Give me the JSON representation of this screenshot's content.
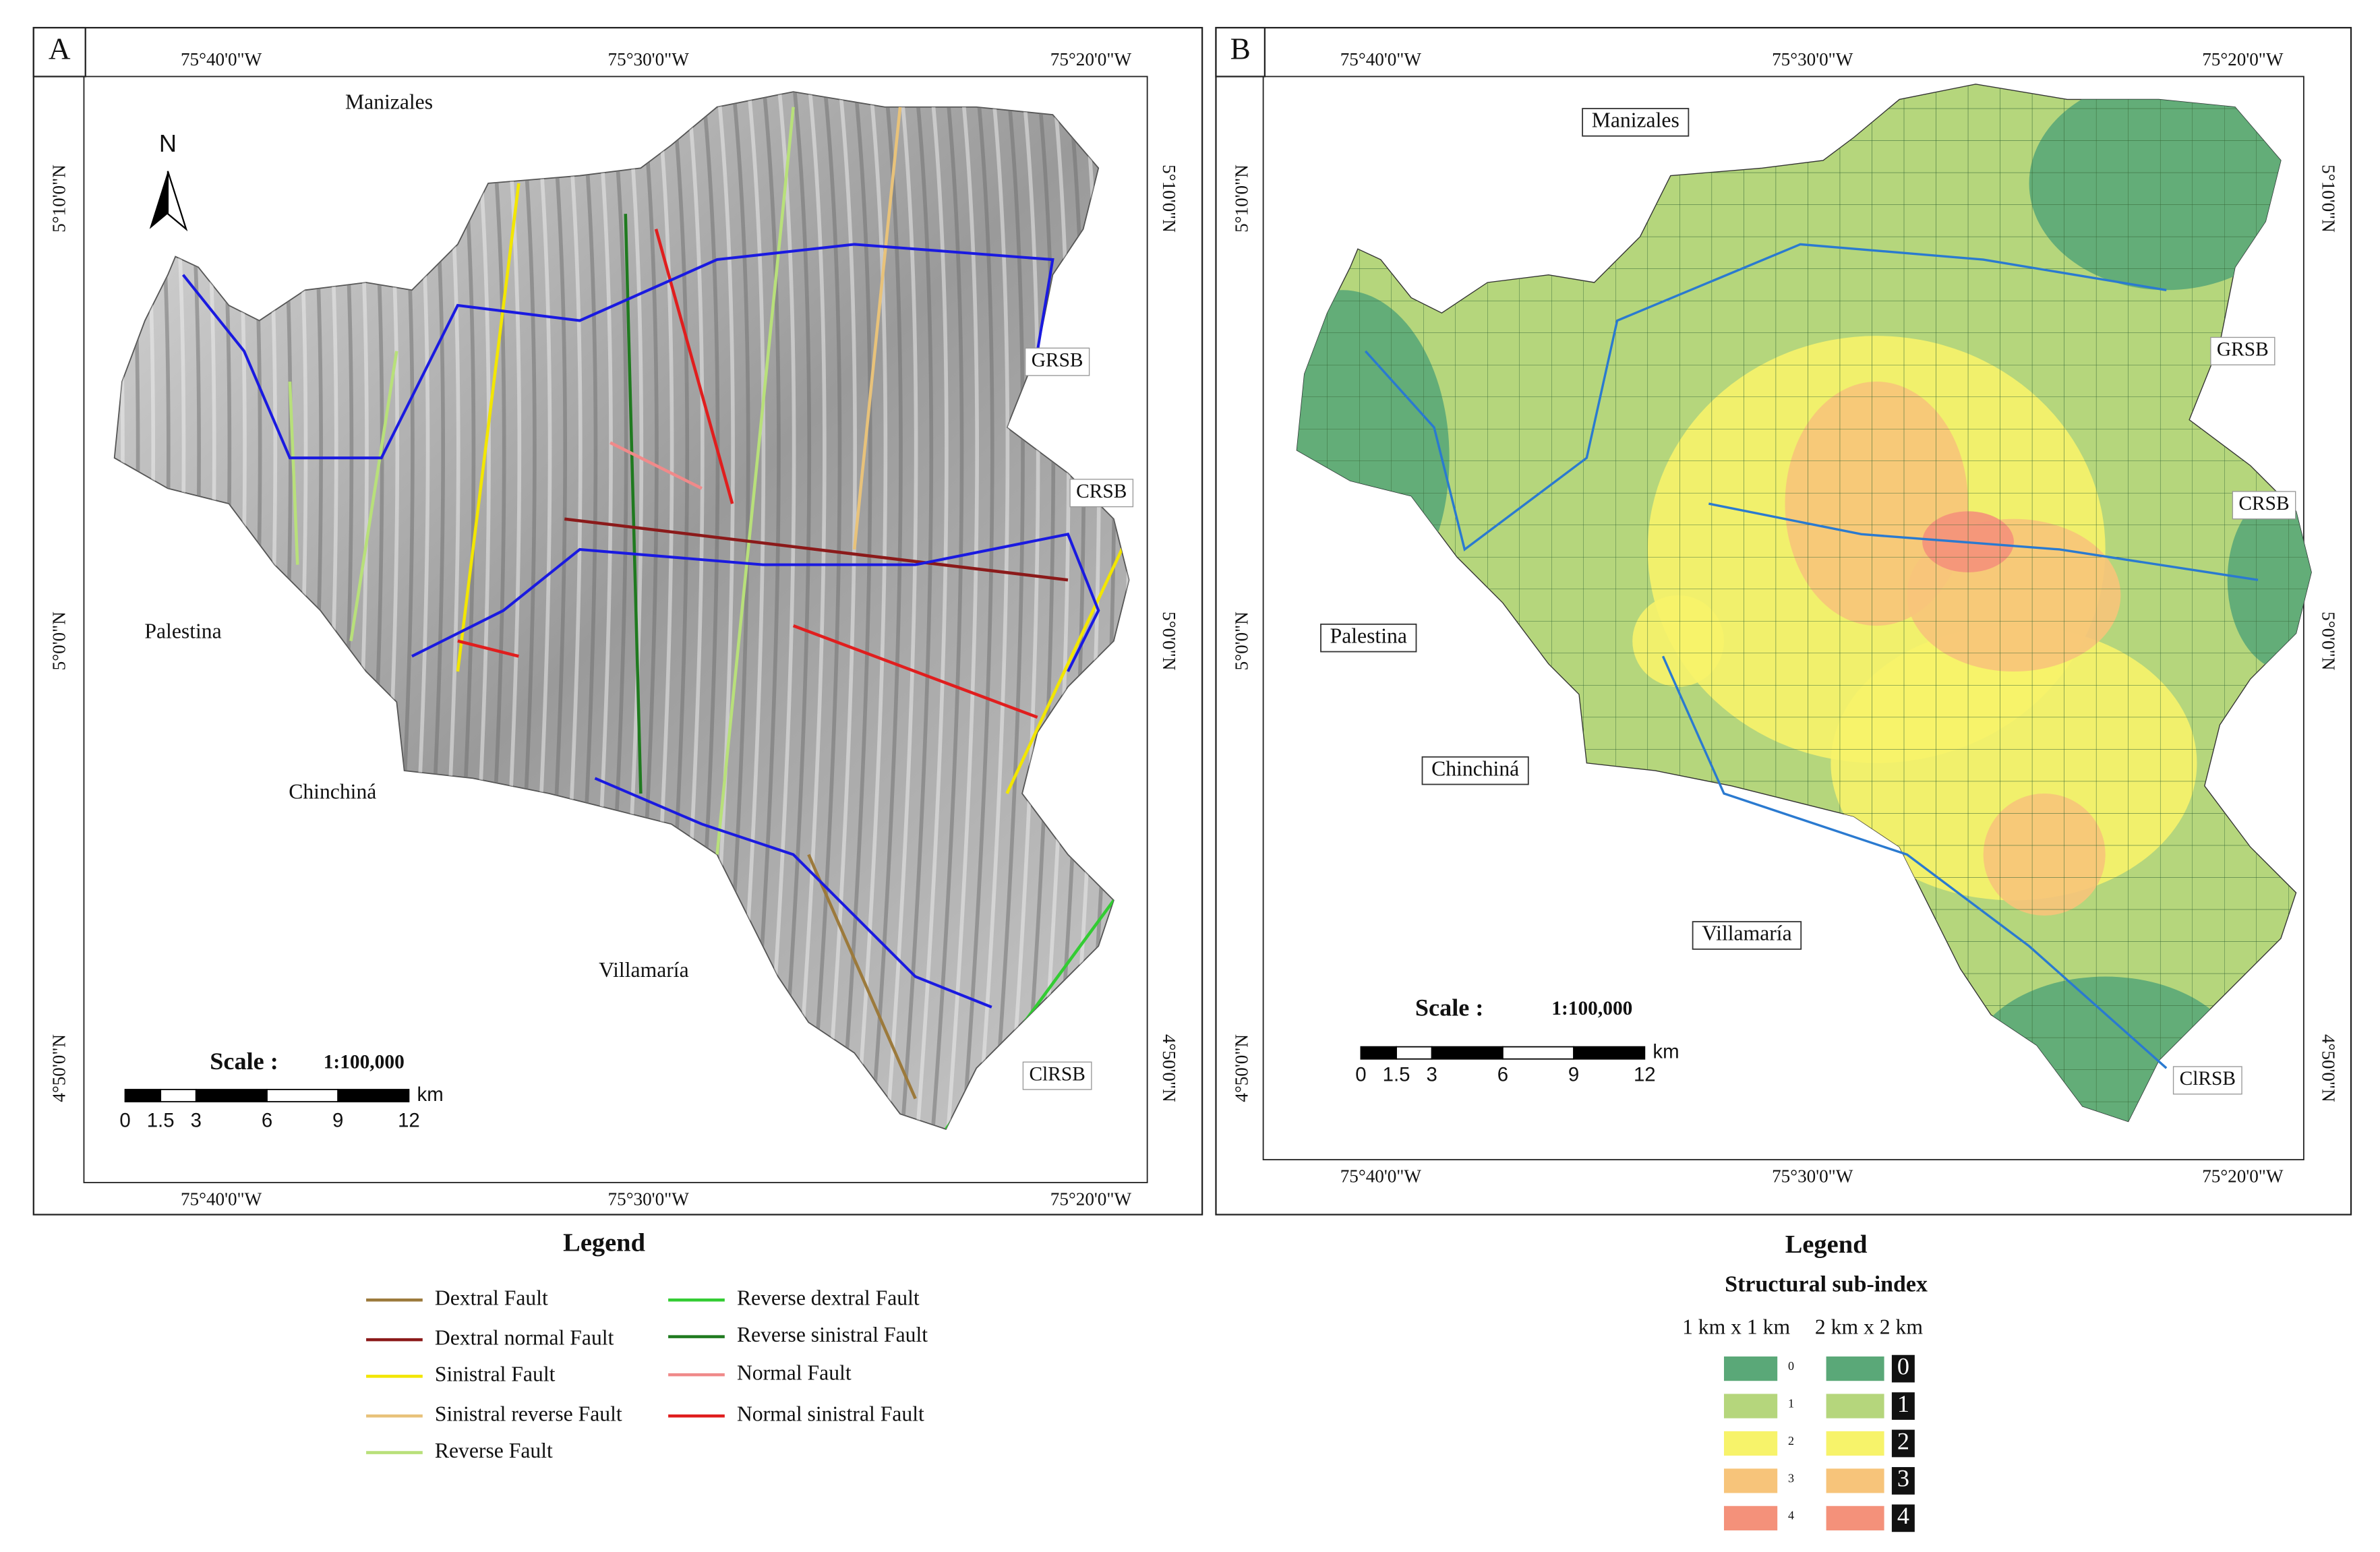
{
  "panels": [
    {
      "label": "A",
      "top_lon": [
        "75°40'0\"W",
        "75°30'0\"W",
        "75°20'0\"W"
      ],
      "bottom_lon": [
        "75°40'0\"W",
        "75°30'0\"W",
        "75°20'0\"W"
      ],
      "left_lat": [
        "5°10'0\"N",
        "5°0'0\"N",
        "4°50'0\"N"
      ],
      "right_lat": [
        "5°10'0\"N",
        "5°0'0\"N",
        "4°50'0\"N"
      ],
      "places": [
        "Manizales",
        "Palestina",
        "Chinchiná",
        "Villamaría"
      ],
      "basins": [
        "GRSB",
        "CRSB",
        "ClRSB"
      ],
      "north": "N",
      "scale": {
        "title": "Scale :",
        "ratio": "1:100,000",
        "unit": "km",
        "ticks": [
          0,
          1.5,
          3,
          6,
          9,
          12
        ]
      }
    },
    {
      "label": "B",
      "top_lon": [
        "75°40'0\"W",
        "75°30'0\"W",
        "75°20'0\"W"
      ],
      "bottom_lon": [
        "75°40'0\"W",
        "75°30'0\"W",
        "75°20'0\"W"
      ],
      "left_lat": [
        "5°10'0\"N",
        "5°0'0\"N",
        "4°50'0\"N"
      ],
      "right_lat": [
        "5°10'0\"N",
        "5°0'0\"N",
        "4°50'0\"N"
      ],
      "places": [
        "Manizales",
        "Palestina",
        "Chinchiná",
        "Villamaría"
      ],
      "basins": [
        "GRSB",
        "CRSB",
        "ClRSB"
      ],
      "scale": {
        "title": "Scale :",
        "ratio": "1:100,000",
        "unit": "km",
        "ticks": [
          0,
          1.5,
          3,
          6,
          9,
          12
        ]
      }
    }
  ],
  "legend_a": {
    "title": "Legend",
    "items": [
      {
        "label": "Dextral Fault",
        "color": "#9c7a3c"
      },
      {
        "label": "Dextral normal Fault",
        "color": "#8b1a1a"
      },
      {
        "label": "Sinistral Fault",
        "color": "#f2e600"
      },
      {
        "label": "Sinistral reverse Fault",
        "color": "#e8c27a"
      },
      {
        "label": "Reverse Fault",
        "color": "#b8e07a"
      },
      {
        "label": "Reverse dextral Fault",
        "color": "#33cc33"
      },
      {
        "label": "Reverse sinistral Fault",
        "color": "#1f7a1f"
      },
      {
        "label": "Normal Fault",
        "color": "#f08a8a"
      },
      {
        "label": "Normal sinistral Fault",
        "color": "#e01e1e"
      }
    ]
  },
  "legend_b": {
    "title": "Legend",
    "subtitle": "Structural sub-index",
    "columns": [
      "1 km x 1 km",
      "2 km x 2 km"
    ],
    "classes": [
      {
        "label": "0",
        "color": "#5aa878"
      },
      {
        "label": "1",
        "color": "#b5d67c"
      },
      {
        "label": "2",
        "color": "#f7f36a"
      },
      {
        "label": "3",
        "color": "#f7c47a"
      },
      {
        "label": "4",
        "color": "#f4917a"
      }
    ]
  }
}
